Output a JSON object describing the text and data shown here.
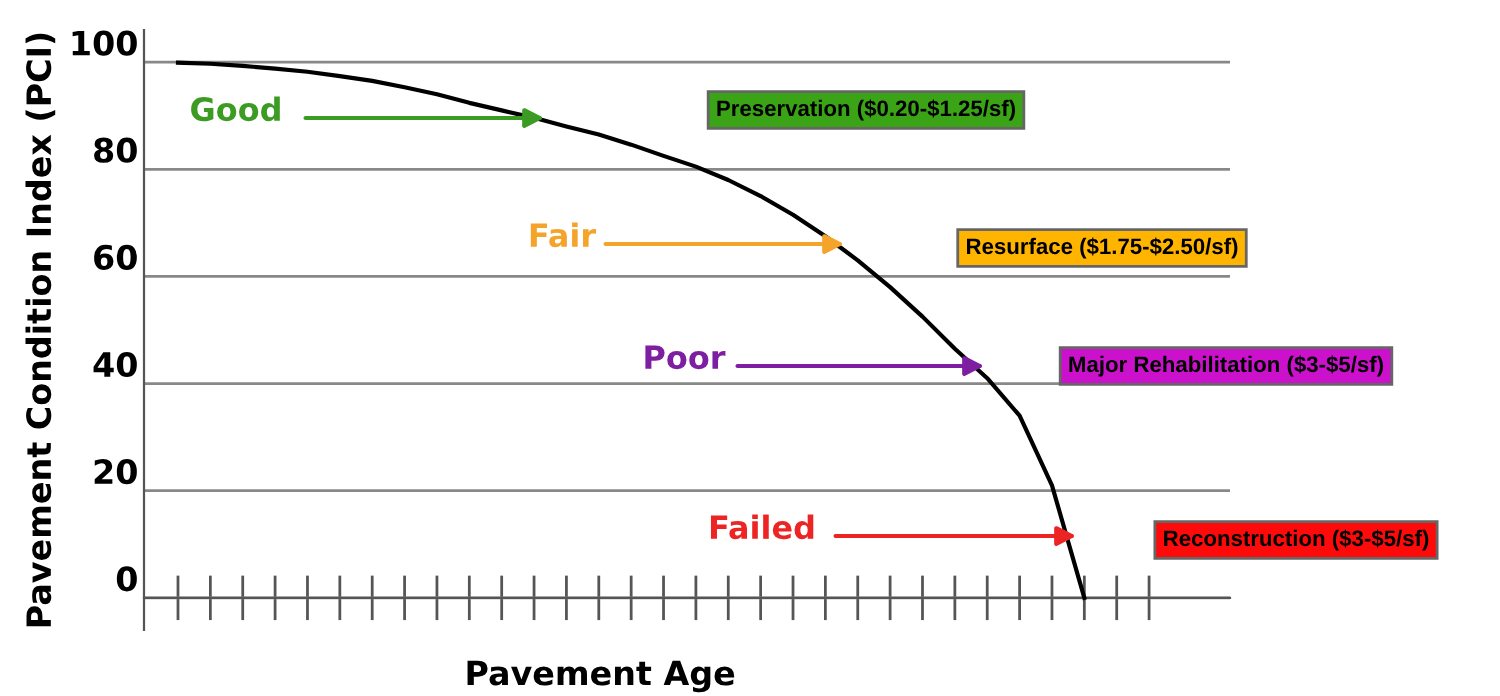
{
  "chart_data": {
    "type": "line",
    "xlabel": "Pavement Age",
    "ylabel": "Pavement Condition Index (PCI)",
    "categories": [
      null,
      null,
      null,
      null,
      null,
      null,
      null,
      null,
      null,
      null,
      null,
      null,
      null,
      null,
      null,
      null,
      null,
      null,
      null,
      null,
      null,
      null,
      null,
      null,
      null,
      null,
      null,
      null,
      null,
      null,
      null
    ],
    "series": [
      {
        "color": "#000000",
        "values": [
          99.9,
          99.7,
          99.3,
          98.8,
          98.2,
          97.4,
          96.5,
          95.3,
          94,
          92.4,
          91,
          89.6,
          88,
          86.5,
          84.6,
          82.5,
          80.5,
          78,
          75,
          71.5,
          67.5,
          63,
          58,
          52.5,
          46.5,
          41,
          34,
          21,
          0,
          null,
          null
        ]
      }
    ],
    "ylim": [
      -6,
      106
    ],
    "yticks": [
      0,
      20,
      40,
      60,
      80,
      100
    ],
    "grid": "y",
    "marker": "none",
    "line_style": "solid",
    "tick_labels": "y",
    "annotations": [
      "Good",
      "Fair",
      "Poor",
      "Failed",
      "Preservation ($0.20-$1.25/sf)",
      "Resurface ($1.75-$2.50/sf)",
      "Major Rehabilitation ($3-$5/sf)",
      "Reconstruction ($3-$5/sf)"
    ]
  }
}
